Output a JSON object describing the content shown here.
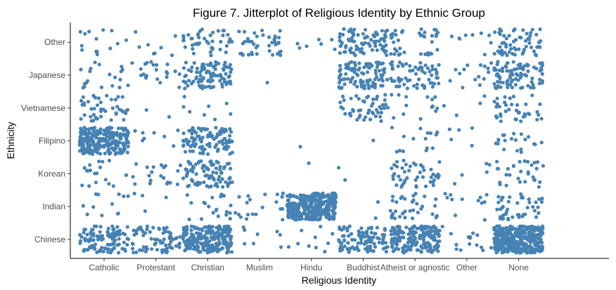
{
  "chart_data": {
    "type": "scatter",
    "subtype": "jitter",
    "title": "Figure 7. Jitterplot of Religious Identity by Ethnic Group",
    "xlabel": "Religious Identity",
    "ylabel": "Ethnicity",
    "x_categories": [
      "Catholic",
      "Protestant",
      "Christian",
      "Muslim",
      "Hindu",
      "Buddhist",
      "Atheist or agnostic",
      "Other",
      "None"
    ],
    "y_categories": [
      "Chinese",
      "Indian",
      "Korean",
      "Filipino",
      "Vietnamese",
      "Japanese",
      "Other"
    ],
    "point_color": "#4682B4",
    "grid": false,
    "legend": "none",
    "counts": {
      "Other": [
        14,
        8,
        45,
        40,
        7,
        80,
        40,
        9,
        60
      ],
      "Japanese": [
        20,
        22,
        95,
        1,
        0,
        100,
        65,
        15,
        90
      ],
      "Vietnamese": [
        45,
        2,
        8,
        0,
        0,
        50,
        14,
        4,
        40
      ],
      "Filipino": [
        260,
        8,
        100,
        0,
        1,
        1,
        15,
        5,
        20
      ],
      "Korean": [
        18,
        20,
        90,
        0,
        1,
        2,
        45,
        5,
        30
      ],
      "Indian": [
        12,
        4,
        20,
        20,
        320,
        2,
        35,
        12,
        45
      ],
      "Chinese": [
        110,
        75,
        230,
        8,
        10,
        100,
        190,
        15,
        380
      ]
    }
  }
}
